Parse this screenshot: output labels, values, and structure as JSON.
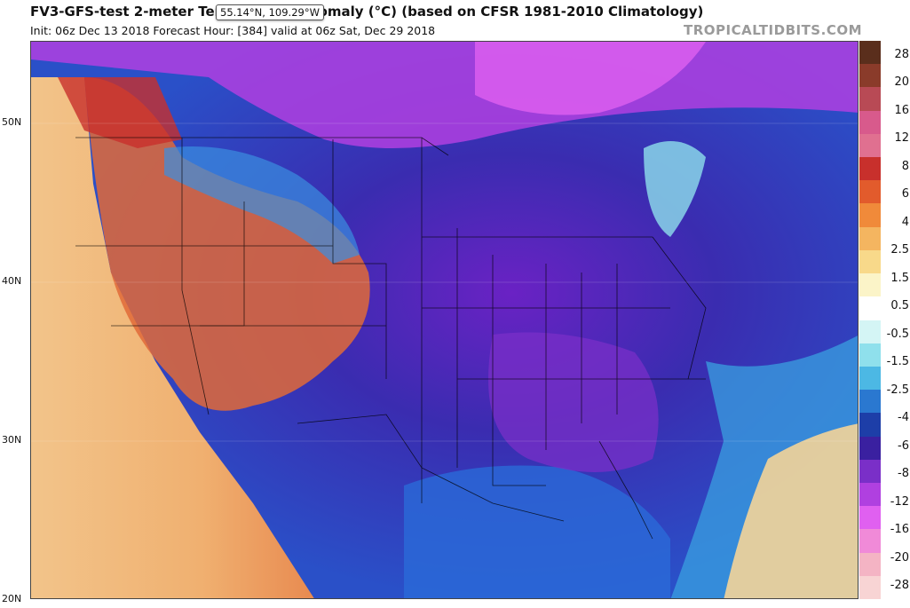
{
  "header": {
    "title": "FV3-GFS-test 2-meter Temperature Anomaly (°C) (based on CFSR 1981-2010 Climatology)",
    "subtitle": "Init: 06z Dec 13 2018   Forecast Hour: [384]   valid at 06z Sat, Dec 29 2018",
    "brand": "TROPICALTIDBITS.COM"
  },
  "tooltip": {
    "text": "55.14°N, 109.29°W"
  },
  "lat_labels": [
    "50N",
    "40N",
    "30N",
    "20N"
  ],
  "colorbar": {
    "labels": [
      "28",
      "20",
      "16",
      "12",
      "8",
      "6",
      "4",
      "2.5",
      "1.5",
      "0.5",
      "-0.5",
      "-1.5",
      "-2.5",
      "-4",
      "-6",
      "-8",
      "-12",
      "-16",
      "-20",
      "-28"
    ],
    "colors": [
      "#5a2e1c",
      "#8a3b2a",
      "#b84a55",
      "#d85a8c",
      "#e07090",
      "#c8302c",
      "#e25b2c",
      "#f08a3a",
      "#f4b560",
      "#f8d98a",
      "#fbf4c8",
      "#ffffff",
      "#d4f5f5",
      "#8fe0ec",
      "#4cb8e4",
      "#2a78d0",
      "#1d3ea8",
      "#3a20a0",
      "#7a2fc8",
      "#b040e0",
      "#e060f0",
      "#f08ad8",
      "#f4b4c4",
      "#f8d4d4"
    ]
  }
}
